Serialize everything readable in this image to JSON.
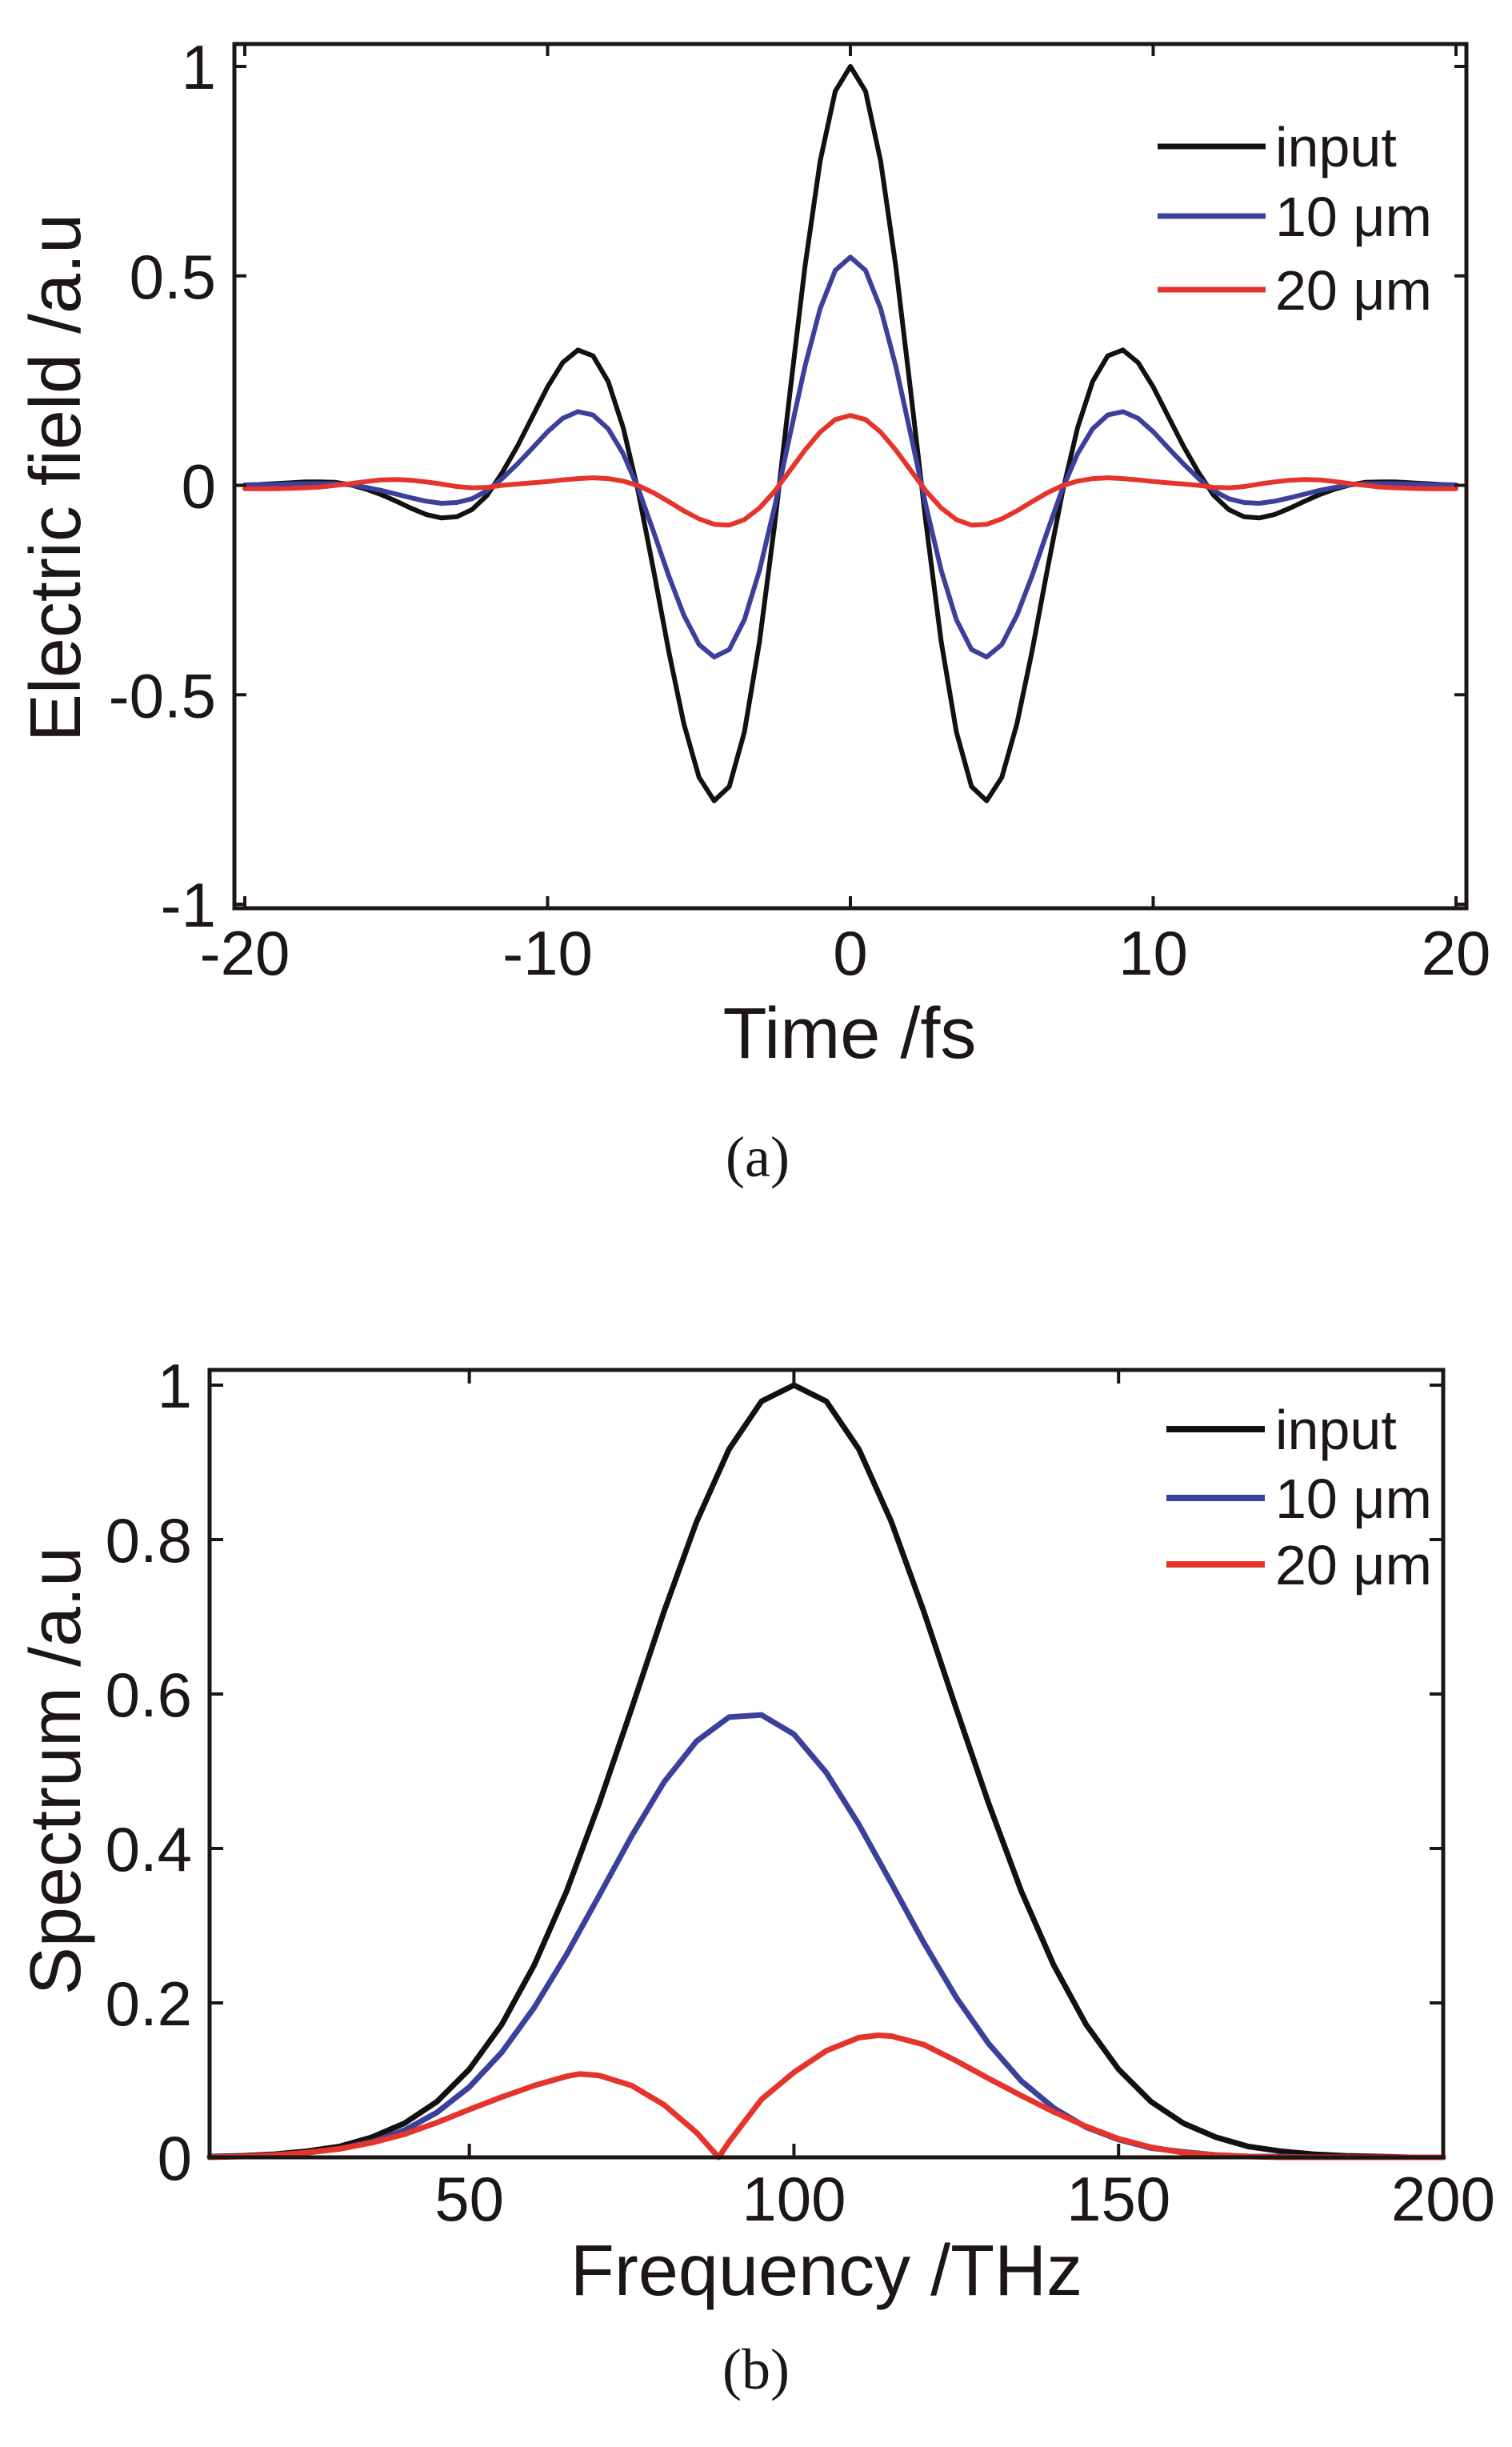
{
  "figure": {
    "panels": [
      "a",
      "b"
    ]
  },
  "chart_data": [
    {
      "id": "a",
      "type": "line",
      "caption": "(a)",
      "title": "",
      "xlabel": "Time /fs",
      "ylabel": "Electric field /a.u",
      "xlim": [
        -20,
        20
      ],
      "ylim": [
        -1,
        1
      ],
      "xticks": [
        -20,
        -10,
        0,
        10,
        20
      ],
      "xtick_labels": [
        "-20",
        "-10",
        "0",
        "10",
        "20"
      ],
      "yticks": [
        -1,
        -0.5,
        0,
        0.5,
        1
      ],
      "ytick_labels": [
        "-1",
        "-0.5",
        "0",
        "0.5",
        "1"
      ],
      "grid": false,
      "legend_position": "top-right",
      "x": [
        -20,
        -19.5,
        -19,
        -18.5,
        -18,
        -17.5,
        -17,
        -16.5,
        -16,
        -15.5,
        -15,
        -14.5,
        -14,
        -13.5,
        -13,
        -12.5,
        -12,
        -11.5,
        -11,
        -10.5,
        -10,
        -9.5,
        -9,
        -8.5,
        -8,
        -7.5,
        -7,
        -6.5,
        -6,
        -5.5,
        -5,
        -4.5,
        -4,
        -3.5,
        -3,
        -2.5,
        -2,
        -1.5,
        -1,
        -0.5,
        0,
        0.5,
        1,
        1.5,
        2,
        2.5,
        3,
        3.5,
        4,
        4.5,
        5,
        5.5,
        6,
        6.5,
        7,
        7.5,
        8,
        8.5,
        9,
        9.5,
        10,
        10.5,
        11,
        11.5,
        12,
        12.5,
        13,
        13.5,
        14,
        14.5,
        15,
        15.5,
        16,
        16.5,
        17,
        17.5,
        18,
        18.5,
        19,
        19.5,
        20
      ],
      "series": [
        {
          "name": "input",
          "color": "#111111",
          "values": [
            0.001,
            0.002,
            0.004,
            0.006,
            0.008,
            0.008,
            0.007,
            0.001,
            -0.009,
            -0.022,
            -0.038,
            -0.055,
            -0.07,
            -0.078,
            -0.075,
            -0.058,
            -0.024,
            0.03,
            0.093,
            0.164,
            0.235,
            0.293,
            0.323,
            0.309,
            0.248,
            0.137,
            -0.017,
            -0.203,
            -0.396,
            -0.569,
            -0.697,
            -0.753,
            -0.719,
            -0.589,
            -0.373,
            -0.092,
            0.219,
            0.522,
            0.774,
            0.941,
            1.0,
            0.941,
            0.774,
            0.522,
            0.219,
            -0.092,
            -0.373,
            -0.589,
            -0.719,
            -0.753,
            -0.697,
            -0.569,
            -0.396,
            -0.203,
            -0.017,
            0.137,
            0.248,
            0.309,
            0.323,
            0.293,
            0.235,
            0.164,
            0.093,
            0.03,
            -0.024,
            -0.058,
            -0.075,
            -0.078,
            -0.07,
            -0.055,
            -0.038,
            -0.022,
            -0.009,
            0.001,
            0.007,
            0.008,
            0.008,
            0.006,
            0.004,
            0.002,
            0.001
          ]
        },
        {
          "name": "10 μm",
          "color": "#3b419b",
          "values": [
            0.001,
            0.001,
            0.002,
            0.003,
            0.004,
            0.004,
            0.004,
            0.001,
            -0.005,
            -0.012,
            -0.021,
            -0.03,
            -0.038,
            -0.043,
            -0.041,
            -0.032,
            -0.013,
            0.016,
            0.051,
            0.089,
            0.128,
            0.16,
            0.176,
            0.168,
            0.135,
            0.075,
            -0.009,
            -0.111,
            -0.216,
            -0.31,
            -0.38,
            -0.41,
            -0.392,
            -0.321,
            -0.203,
            -0.05,
            0.119,
            0.284,
            0.422,
            0.513,
            0.545,
            0.513,
            0.422,
            0.284,
            0.119,
            -0.05,
            -0.203,
            -0.321,
            -0.392,
            -0.41,
            -0.38,
            -0.31,
            -0.216,
            -0.111,
            -0.009,
            0.075,
            0.135,
            0.168,
            0.176,
            0.16,
            0.128,
            0.089,
            0.051,
            0.016,
            -0.013,
            -0.032,
            -0.041,
            -0.043,
            -0.038,
            -0.03,
            -0.021,
            -0.012,
            -0.005,
            0.001,
            0.004,
            0.004,
            0.004,
            0.003,
            0.002,
            0.001,
            0.001
          ]
        },
        {
          "name": "20 μm",
          "color": "#e5342c",
          "values": [
            -0.008,
            -0.008,
            -0.008,
            -0.007,
            -0.006,
            -0.004,
            0.0,
            0.004,
            0.009,
            0.013,
            0.014,
            0.012,
            0.008,
            0.003,
            -0.003,
            -0.006,
            -0.005,
            0.0,
            0.003,
            0.006,
            0.009,
            0.013,
            0.016,
            0.018,
            0.016,
            0.01,
            -0.001,
            -0.018,
            -0.039,
            -0.061,
            -0.08,
            -0.093,
            -0.095,
            -0.082,
            -0.054,
            -0.014,
            0.035,
            0.084,
            0.127,
            0.157,
            0.167,
            0.157,
            0.127,
            0.084,
            0.035,
            -0.014,
            -0.054,
            -0.082,
            -0.095,
            -0.093,
            -0.08,
            -0.061,
            -0.039,
            -0.018,
            -0.001,
            0.01,
            0.016,
            0.018,
            0.016,
            0.013,
            0.009,
            0.006,
            0.003,
            0.0,
            -0.005,
            -0.006,
            -0.003,
            0.003,
            0.008,
            0.012,
            0.014,
            0.013,
            0.009,
            0.004,
            0.0,
            -0.004,
            -0.006,
            -0.007,
            -0.008,
            -0.008,
            -0.008
          ]
        }
      ]
    },
    {
      "id": "b",
      "type": "line",
      "caption": "(b)",
      "title": "",
      "xlabel": "Frequency /THz",
      "ylabel": "Spectrum /a.u",
      "xlim": [
        10,
        200
      ],
      "ylim": [
        0,
        1
      ],
      "xticks": [
        50,
        100,
        150,
        200
      ],
      "xtick_labels": [
        "50",
        "100",
        "150",
        "200"
      ],
      "yticks": [
        0,
        0.2,
        0.4,
        0.6,
        0.8,
        1
      ],
      "ytick_labels": [
        "0",
        "0.2",
        "0.4",
        "0.6",
        "0.8",
        "1"
      ],
      "grid": false,
      "legend_position": "top-right",
      "series": [
        {
          "name": "input",
          "color": "#111111",
          "x": [
            10,
            15,
            20,
            25,
            30,
            35,
            40,
            45,
            50,
            55,
            60,
            65,
            70,
            75,
            80,
            85,
            90,
            95,
            100,
            105,
            110,
            115,
            120,
            125,
            130,
            135,
            140,
            145,
            150,
            155,
            160,
            165,
            170,
            175,
            180,
            185,
            190,
            195,
            200
          ],
          "values": [
            0.001,
            0.002,
            0.004,
            0.008,
            0.014,
            0.026,
            0.044,
            0.072,
            0.114,
            0.172,
            0.249,
            0.345,
            0.458,
            0.581,
            0.707,
            0.823,
            0.917,
            0.979,
            1.0,
            0.979,
            0.917,
            0.823,
            0.707,
            0.581,
            0.458,
            0.345,
            0.249,
            0.172,
            0.114,
            0.072,
            0.044,
            0.026,
            0.014,
            0.008,
            0.004,
            0.002,
            0.001,
            0.0,
            0.0
          ]
        },
        {
          "name": "10 μm",
          "color": "#3b419b",
          "x": [
            10,
            15,
            20,
            25,
            30,
            35,
            40,
            45,
            50,
            55,
            60,
            65,
            70,
            75,
            80,
            85,
            90,
            95,
            100,
            105,
            110,
            115,
            120,
            125,
            130,
            135,
            140,
            145,
            150,
            155,
            160,
            165,
            170,
            175,
            180,
            185,
            190,
            195,
            200
          ],
          "values": [
            0.001,
            0.001,
            0.003,
            0.006,
            0.011,
            0.02,
            0.035,
            0.058,
            0.091,
            0.136,
            0.194,
            0.263,
            0.339,
            0.416,
            0.486,
            0.539,
            0.57,
            0.573,
            0.548,
            0.498,
            0.431,
            0.355,
            0.278,
            0.207,
            0.147,
            0.099,
            0.064,
            0.039,
            0.023,
            0.012,
            0.007,
            0.003,
            0.001,
            0.001,
            0.0,
            0.0,
            0.0,
            0.0,
            0.0
          ]
        },
        {
          "name": "20 μm",
          "color": "#e5342c",
          "x": [
            10,
            15,
            20,
            25,
            30,
            35,
            40,
            45,
            50,
            55,
            60,
            65,
            67,
            70,
            75,
            80,
            85,
            88.4,
            90,
            95,
            100,
            105,
            110,
            113,
            115,
            120,
            125,
            130,
            135,
            140,
            145,
            150,
            155,
            160,
            165,
            170,
            175,
            180,
            185,
            190,
            195,
            200
          ],
          "values": [
            0.0,
            0.001,
            0.003,
            0.006,
            0.011,
            0.019,
            0.03,
            0.045,
            0.062,
            0.078,
            0.093,
            0.105,
            0.108,
            0.106,
            0.093,
            0.068,
            0.032,
            0.0,
            0.02,
            0.075,
            0.11,
            0.138,
            0.155,
            0.158,
            0.157,
            0.146,
            0.125,
            0.102,
            0.08,
            0.059,
            0.04,
            0.024,
            0.013,
            0.006,
            0.003,
            0.001,
            0.0,
            0.0,
            0.0,
            0.0,
            0.0,
            0.0
          ]
        }
      ]
    }
  ]
}
